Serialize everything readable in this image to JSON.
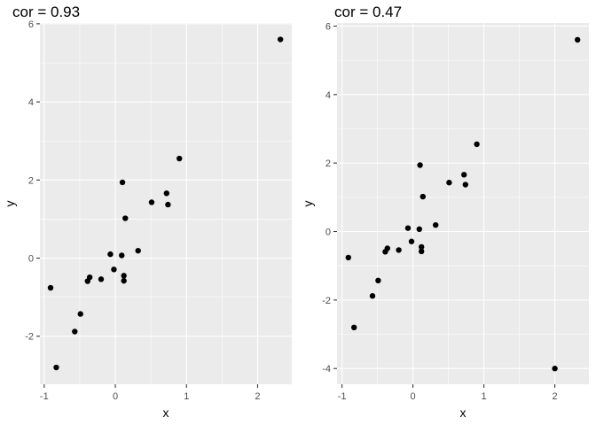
{
  "chart_data": [
    {
      "type": "scatter",
      "title": "cor = 0.93",
      "xlabel": "x",
      "ylabel": "y",
      "xlim": [
        -1.06,
        2.48
      ],
      "ylim": [
        -3.23,
        6.02
      ],
      "x_ticks": [
        -1,
        0,
        1,
        2
      ],
      "x_tick_labels": [
        "-1",
        "0",
        "1",
        "2"
      ],
      "y_ticks": [
        -2,
        0,
        2,
        4,
        6
      ],
      "y_tick_labels": [
        "-2",
        "0",
        "2",
        "4",
        "6"
      ],
      "grid": true,
      "background": "#ebebeb",
      "point_color": "#000000",
      "points": [
        {
          "x": -0.91,
          "y": -0.76
        },
        {
          "x": -0.83,
          "y": -2.8
        },
        {
          "x": -0.57,
          "y": -1.88
        },
        {
          "x": -0.49,
          "y": -1.43
        },
        {
          "x": -0.39,
          "y": -0.59
        },
        {
          "x": -0.36,
          "y": -0.49
        },
        {
          "x": -0.2,
          "y": -0.54
        },
        {
          "x": -0.07,
          "y": 0.1
        },
        {
          "x": -0.02,
          "y": -0.29
        },
        {
          "x": 0.09,
          "y": 0.07
        },
        {
          "x": 0.1,
          "y": 1.94
        },
        {
          "x": 0.12,
          "y": -0.45
        },
        {
          "x": 0.12,
          "y": -0.58
        },
        {
          "x": 0.14,
          "y": 1.02
        },
        {
          "x": 0.32,
          "y": 0.19
        },
        {
          "x": 0.51,
          "y": 1.43
        },
        {
          "x": 0.72,
          "y": 1.66
        },
        {
          "x": 0.74,
          "y": 1.37
        },
        {
          "x": 0.9,
          "y": 2.55
        },
        {
          "x": 2.32,
          "y": 5.6
        }
      ]
    },
    {
      "type": "scatter",
      "title": "cor = 0.47",
      "xlabel": "x",
      "ylabel": "y",
      "xlim": [
        -1.07,
        2.48
      ],
      "ylim": [
        -4.46,
        6.09
      ],
      "x_ticks": [
        -1,
        0,
        1,
        2
      ],
      "x_tick_labels": [
        "-1",
        "0",
        "1",
        "2"
      ],
      "y_ticks": [
        -4,
        -2,
        0,
        2,
        4,
        6
      ],
      "y_tick_labels": [
        "-4",
        "-2",
        "0",
        "2",
        "4",
        "6"
      ],
      "grid": true,
      "background": "#ebebeb",
      "point_color": "#000000",
      "points": [
        {
          "x": -0.91,
          "y": -0.76
        },
        {
          "x": -0.83,
          "y": -2.8
        },
        {
          "x": -0.57,
          "y": -1.88
        },
        {
          "x": -0.49,
          "y": -1.43
        },
        {
          "x": -0.39,
          "y": -0.59
        },
        {
          "x": -0.36,
          "y": -0.49
        },
        {
          "x": -0.2,
          "y": -0.54
        },
        {
          "x": -0.07,
          "y": 0.1
        },
        {
          "x": -0.02,
          "y": -0.29
        },
        {
          "x": 0.09,
          "y": 0.07
        },
        {
          "x": 0.1,
          "y": 1.94
        },
        {
          "x": 0.12,
          "y": -0.45
        },
        {
          "x": 0.12,
          "y": -0.58
        },
        {
          "x": 0.14,
          "y": 1.02
        },
        {
          "x": 0.32,
          "y": 0.19
        },
        {
          "x": 0.51,
          "y": 1.43
        },
        {
          "x": 0.72,
          "y": 1.66
        },
        {
          "x": 0.74,
          "y": 1.37
        },
        {
          "x": 0.9,
          "y": 2.55
        },
        {
          "x": 2.0,
          "y": -4.0
        },
        {
          "x": 2.32,
          "y": 5.6
        }
      ]
    }
  ]
}
